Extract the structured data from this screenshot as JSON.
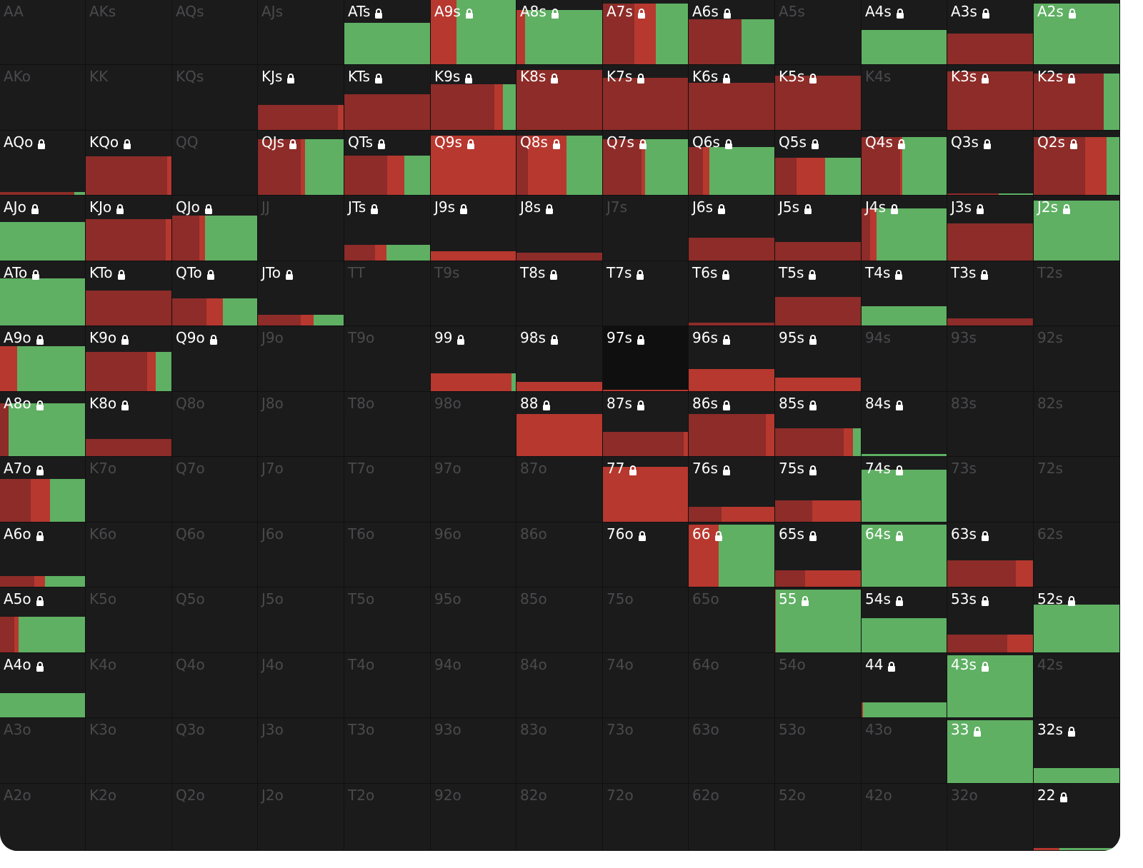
{
  "colors": {
    "background": "#1b1b1c",
    "call": "#8d2c28",
    "raise": "#b7382f",
    "fold": "#5fb063",
    "label_on": "#ffffff",
    "label_off": "#4a4a4c"
  },
  "icons": {
    "locked": "lock-icon"
  },
  "rows": [
    [
      {
        "hand": "AA",
        "on": false
      },
      {
        "hand": "AKs",
        "on": false
      },
      {
        "hand": "AQs",
        "on": false
      },
      {
        "hand": "AJs",
        "on": false
      },
      {
        "hand": "ATs",
        "on": true,
        "h": 0.65,
        "s": [
          0,
          0,
          1
        ]
      },
      {
        "hand": "A9s",
        "on": true,
        "h": 1.0,
        "s": [
          0,
          0.3,
          0.7
        ]
      },
      {
        "hand": "A8s",
        "on": true,
        "h": 0.85,
        "s": [
          0,
          0.1,
          0.9
        ]
      },
      {
        "hand": "A7s",
        "on": true,
        "h": 0.95,
        "s": [
          0.37,
          0.25,
          0.38
        ]
      },
      {
        "hand": "A6s",
        "on": true,
        "h": 0.7,
        "s": [
          0.62,
          0.0,
          0.38
        ]
      },
      {
        "hand": "A5s",
        "on": false
      },
      {
        "hand": "A4s",
        "on": true,
        "h": 0.53,
        "s": [
          0,
          0,
          1
        ]
      },
      {
        "hand": "A3s",
        "on": true,
        "h": 0.48,
        "s": [
          1,
          0,
          0
        ]
      },
      {
        "hand": "A2s",
        "on": true,
        "h": 0.94,
        "s": [
          0,
          0,
          1
        ]
      }
    ],
    [
      {
        "hand": "AKo",
        "on": false
      },
      {
        "hand": "KK",
        "on": false
      },
      {
        "hand": "KQs",
        "on": false
      },
      {
        "hand": "KJs",
        "on": true,
        "h": 0.39,
        "s": [
          0.93,
          0.07,
          0
        ]
      },
      {
        "hand": "KTs",
        "on": true,
        "h": 0.55,
        "s": [
          1,
          0,
          0
        ]
      },
      {
        "hand": "K9s",
        "on": true,
        "h": 0.7,
        "s": [
          0.75,
          0.1,
          0.15
        ]
      },
      {
        "hand": "K8s",
        "on": true,
        "h": 0.92,
        "s": [
          1,
          0,
          0
        ]
      },
      {
        "hand": "K7s",
        "on": true,
        "h": 0.8,
        "s": [
          1,
          0,
          0
        ]
      },
      {
        "hand": "K6s",
        "on": true,
        "h": 0.73,
        "s": [
          1,
          0,
          0
        ]
      },
      {
        "hand": "K5s",
        "on": true,
        "h": 0.84,
        "s": [
          1,
          0,
          0
        ]
      },
      {
        "hand": "K4s",
        "on": false
      },
      {
        "hand": "K3s",
        "on": true,
        "h": 0.9,
        "s": [
          1,
          0,
          0
        ]
      },
      {
        "hand": "K2s",
        "on": true,
        "h": 0.87,
        "s": [
          0.82,
          0,
          0.18
        ]
      }
    ],
    [
      {
        "hand": "AQo",
        "on": true,
        "h": 0.05,
        "s": [
          0.87,
          0,
          0.13
        ]
      },
      {
        "hand": "KQo",
        "on": true,
        "h": 0.6,
        "s": [
          0.95,
          0.05,
          0
        ]
      },
      {
        "hand": "QQ",
        "on": false
      },
      {
        "hand": "QJs",
        "on": true,
        "h": 0.87,
        "s": [
          0.5,
          0.05,
          0.45
        ]
      },
      {
        "hand": "QTs",
        "on": true,
        "h": 0.61,
        "s": [
          0.5,
          0.2,
          0.3
        ]
      },
      {
        "hand": "Q9s",
        "on": true,
        "h": 0.92,
        "s": [
          0,
          1,
          0
        ]
      },
      {
        "hand": "Q8s",
        "on": true,
        "h": 0.92,
        "s": [
          0.13,
          0.45,
          0.42
        ]
      },
      {
        "hand": "Q7s",
        "on": true,
        "h": 0.87,
        "s": [
          0.45,
          0.05,
          0.5
        ]
      },
      {
        "hand": "Q6s",
        "on": true,
        "h": 0.75,
        "s": [
          0.17,
          0.07,
          0.76
        ]
      },
      {
        "hand": "Q5s",
        "on": true,
        "h": 0.58,
        "s": [
          0.25,
          0.33,
          0.42
        ]
      },
      {
        "hand": "Q4s",
        "on": true,
        "h": 0.9,
        "s": [
          0.45,
          0.03,
          0.52
        ]
      },
      {
        "hand": "Q3s",
        "on": true,
        "h": 0.02,
        "s": [
          0.6,
          0,
          0.4
        ]
      },
      {
        "hand": "Q2s",
        "on": true,
        "h": 0.9,
        "s": [
          0.6,
          0.25,
          0.15
        ]
      }
    ],
    [
      {
        "hand": "AJo",
        "on": true,
        "h": 0.59,
        "s": [
          0,
          0,
          1
        ]
      },
      {
        "hand": "KJo",
        "on": true,
        "h": 0.64,
        "s": [
          0.93,
          0.07,
          0
        ]
      },
      {
        "hand": "QJo",
        "on": true,
        "h": 0.69,
        "s": [
          0.32,
          0.07,
          0.61
        ]
      },
      {
        "hand": "JJ",
        "on": false
      },
      {
        "hand": "JTs",
        "on": true,
        "h": 0.24,
        "s": [
          0.36,
          0.13,
          0.51
        ]
      },
      {
        "hand": "J9s",
        "on": true,
        "h": 0.14,
        "s": [
          0,
          1,
          0
        ]
      },
      {
        "hand": "J8s",
        "on": true,
        "h": 0.12,
        "s": [
          1,
          0,
          0
        ]
      },
      {
        "hand": "J7s",
        "on": false
      },
      {
        "hand": "J6s",
        "on": true,
        "h": 0.35,
        "s": [
          1,
          0,
          0
        ]
      },
      {
        "hand": "J5s",
        "on": true,
        "h": 0.29,
        "s": [
          1,
          0,
          0
        ]
      },
      {
        "hand": "J4s",
        "on": true,
        "h": 0.8,
        "s": [
          0.1,
          0.08,
          0.82
        ]
      },
      {
        "hand": "J3s",
        "on": true,
        "h": 0.57,
        "s": [
          1,
          0,
          0
        ]
      },
      {
        "hand": "J2s",
        "on": true,
        "h": 0.92,
        "s": [
          0,
          0,
          1
        ]
      }
    ],
    [
      {
        "hand": "ATo",
        "on": true,
        "h": 0.73,
        "s": [
          0,
          0,
          1
        ]
      },
      {
        "hand": "KTo",
        "on": true,
        "h": 0.55,
        "s": [
          1,
          0,
          0
        ]
      },
      {
        "hand": "QTo",
        "on": true,
        "h": 0.42,
        "s": [
          0.4,
          0.2,
          0.4
        ]
      },
      {
        "hand": "JTo",
        "on": true,
        "h": 0.17,
        "s": [
          0.5,
          0.15,
          0.35
        ]
      },
      {
        "hand": "TT",
        "on": false
      },
      {
        "hand": "T9s",
        "on": false
      },
      {
        "hand": "T8s",
        "on": false,
        "lockOn": true
      },
      {
        "hand": "T7s",
        "on": false,
        "lockOn": true
      },
      {
        "hand": "T6s",
        "on": true,
        "h": 0.05,
        "s": [
          1,
          0,
          0
        ]
      },
      {
        "hand": "T5s",
        "on": true,
        "h": 0.45,
        "s": [
          1,
          0,
          0
        ]
      },
      {
        "hand": "T4s",
        "on": true,
        "h": 0.3,
        "s": [
          0,
          0,
          1
        ]
      },
      {
        "hand": "T3s",
        "on": true,
        "h": 0.11,
        "s": [
          1,
          0,
          0
        ]
      },
      {
        "hand": "T2s",
        "on": false
      }
    ],
    [
      {
        "hand": "A9o",
        "on": true,
        "h": 0.69,
        "s": [
          0,
          0.2,
          0.8
        ]
      },
      {
        "hand": "K9o",
        "on": true,
        "h": 0.6,
        "s": [
          0.72,
          0.1,
          0.18
        ]
      },
      {
        "hand": "Q9o",
        "on": false,
        "lockOn": true
      },
      {
        "hand": "J9o",
        "on": false
      },
      {
        "hand": "T9o",
        "on": false
      },
      {
        "hand": "99",
        "on": true,
        "h": 0.28,
        "s": [
          0,
          0.95,
          0.05
        ]
      },
      {
        "hand": "98s",
        "on": true,
        "h": 0.14,
        "s": [
          0,
          1,
          0
        ]
      },
      {
        "hand": "97s",
        "on": true,
        "dark": true,
        "h": 0.02,
        "s": [
          0,
          1,
          0
        ]
      },
      {
        "hand": "96s",
        "on": true,
        "h": 0.34,
        "s": [
          0,
          1,
          0
        ]
      },
      {
        "hand": "95s",
        "on": true,
        "h": 0.21,
        "s": [
          0,
          1,
          0
        ]
      },
      {
        "hand": "94s",
        "on": false
      },
      {
        "hand": "93s",
        "on": false
      },
      {
        "hand": "92s",
        "on": false
      }
    ],
    [
      {
        "hand": "A8o",
        "on": true,
        "h": 0.82,
        "s": [
          0.1,
          0,
          0.9
        ]
      },
      {
        "hand": "K8o",
        "on": true,
        "h": 0.27,
        "s": [
          1,
          0,
          0
        ]
      },
      {
        "hand": "Q8o",
        "on": false
      },
      {
        "hand": "J8o",
        "on": false
      },
      {
        "hand": "T8o",
        "on": false
      },
      {
        "hand": "98o",
        "on": false
      },
      {
        "hand": "88",
        "on": true,
        "h": 0.66,
        "s": [
          0,
          1,
          0
        ]
      },
      {
        "hand": "87s",
        "on": true,
        "h": 0.38,
        "s": [
          0.95,
          0.05,
          0
        ]
      },
      {
        "hand": "86s",
        "on": true,
        "h": 0.66,
        "s": [
          0.9,
          0.1,
          0
        ]
      },
      {
        "hand": "85s",
        "on": true,
        "h": 0.43,
        "s": [
          0.8,
          0.11,
          0.09
        ]
      },
      {
        "hand": "84s",
        "on": true,
        "h": 0.03,
        "s": [
          0,
          0,
          1
        ]
      },
      {
        "hand": "83s",
        "on": false
      },
      {
        "hand": "82s",
        "on": false
      }
    ],
    [
      {
        "hand": "A7o",
        "on": true,
        "h": 0.66,
        "s": [
          0.36,
          0.23,
          0.41
        ]
      },
      {
        "hand": "K7o",
        "on": false
      },
      {
        "hand": "Q7o",
        "on": false
      },
      {
        "hand": "J7o",
        "on": false
      },
      {
        "hand": "T7o",
        "on": false
      },
      {
        "hand": "97o",
        "on": false
      },
      {
        "hand": "87o",
        "on": false
      },
      {
        "hand": "77",
        "on": true,
        "h": 0.85,
        "s": [
          0,
          1,
          0
        ]
      },
      {
        "hand": "76s",
        "on": true,
        "h": 0.23,
        "s": [
          0.38,
          0.62,
          0
        ]
      },
      {
        "hand": "75s",
        "on": true,
        "h": 0.33,
        "s": [
          0.43,
          0.57,
          0
        ]
      },
      {
        "hand": "74s",
        "on": true,
        "h": 0.8,
        "s": [
          0,
          0,
          1
        ]
      },
      {
        "hand": "73s",
        "on": false
      },
      {
        "hand": "72s",
        "on": false
      }
    ],
    [
      {
        "hand": "A6o",
        "on": true,
        "h": 0.17,
        "s": [
          0.4,
          0.13,
          0.47
        ]
      },
      {
        "hand": "K6o",
        "on": false
      },
      {
        "hand": "Q6o",
        "on": false
      },
      {
        "hand": "J6o",
        "on": false
      },
      {
        "hand": "T6o",
        "on": false
      },
      {
        "hand": "96o",
        "on": false
      },
      {
        "hand": "86o",
        "on": false
      },
      {
        "hand": "76o",
        "on": false,
        "lockOn": true
      },
      {
        "hand": "66",
        "on": true,
        "h": 0.97,
        "s": [
          0,
          0.35,
          0.65
        ]
      },
      {
        "hand": "65s",
        "on": true,
        "h": 0.26,
        "s": [
          0.35,
          0.65,
          0
        ]
      },
      {
        "hand": "64s",
        "on": true,
        "h": 0.97,
        "s": [
          0,
          0,
          1
        ]
      },
      {
        "hand": "63s",
        "on": true,
        "h": 0.41,
        "s": [
          0.8,
          0.2,
          0
        ]
      },
      {
        "hand": "62s",
        "on": false
      }
    ],
    [
      {
        "hand": "A5o",
        "on": true,
        "h": 0.55,
        "s": [
          0.17,
          0.05,
          0.78
        ]
      },
      {
        "hand": "K5o",
        "on": false
      },
      {
        "hand": "Q5o",
        "on": false
      },
      {
        "hand": "J5o",
        "on": false
      },
      {
        "hand": "T5o",
        "on": false
      },
      {
        "hand": "95o",
        "on": false
      },
      {
        "hand": "85o",
        "on": false
      },
      {
        "hand": "75o",
        "on": false
      },
      {
        "hand": "65o",
        "on": false
      },
      {
        "hand": "55",
        "on": true,
        "h": 0.97,
        "s": [
          0,
          0.01,
          0.99
        ]
      },
      {
        "hand": "54s",
        "on": true,
        "h": 0.53,
        "s": [
          0,
          0,
          1
        ]
      },
      {
        "hand": "53s",
        "on": true,
        "h": 0.27,
        "s": [
          0.7,
          0.3,
          0
        ]
      },
      {
        "hand": "52s",
        "on": true,
        "h": 0.74,
        "s": [
          0,
          0,
          1
        ]
      }
    ],
    [
      {
        "hand": "A4o",
        "on": true,
        "h": 0.38,
        "s": [
          0,
          0,
          1
        ]
      },
      {
        "hand": "K4o",
        "on": false
      },
      {
        "hand": "Q4o",
        "on": false
      },
      {
        "hand": "J4o",
        "on": false
      },
      {
        "hand": "T4o",
        "on": false
      },
      {
        "hand": "94o",
        "on": false
      },
      {
        "hand": "84o",
        "on": false
      },
      {
        "hand": "74o",
        "on": false
      },
      {
        "hand": "64o",
        "on": false
      },
      {
        "hand": "54o",
        "on": false
      },
      {
        "hand": "44",
        "on": true,
        "h": 0.23,
        "s": [
          0.01,
          0.01,
          0.98
        ]
      },
      {
        "hand": "43s",
        "on": true,
        "h": 0.97,
        "s": [
          0,
          0,
          1
        ]
      },
      {
        "hand": "42s",
        "on": false
      }
    ],
    [
      {
        "hand": "A3o",
        "on": false
      },
      {
        "hand": "K3o",
        "on": false
      },
      {
        "hand": "Q3o",
        "on": false
      },
      {
        "hand": "J3o",
        "on": false
      },
      {
        "hand": "T3o",
        "on": false
      },
      {
        "hand": "93o",
        "on": false
      },
      {
        "hand": "83o",
        "on": false
      },
      {
        "hand": "73o",
        "on": false
      },
      {
        "hand": "63o",
        "on": false
      },
      {
        "hand": "53o",
        "on": false
      },
      {
        "hand": "43o",
        "on": false
      },
      {
        "hand": "33",
        "on": true,
        "h": 0.97,
        "s": [
          0,
          0,
          1
        ]
      },
      {
        "hand": "32s",
        "on": true,
        "h": 0.23,
        "s": [
          0,
          0,
          1
        ]
      }
    ],
    [
      {
        "hand": "A2o",
        "on": false
      },
      {
        "hand": "K2o",
        "on": false
      },
      {
        "hand": "Q2o",
        "on": false
      },
      {
        "hand": "J2o",
        "on": false
      },
      {
        "hand": "T2o",
        "on": false
      },
      {
        "hand": "92o",
        "on": false
      },
      {
        "hand": "82o",
        "on": false
      },
      {
        "hand": "72o",
        "on": false
      },
      {
        "hand": "62o",
        "on": false
      },
      {
        "hand": "52o",
        "on": false
      },
      {
        "hand": "42o",
        "on": false
      },
      {
        "hand": "32o",
        "on": false
      },
      {
        "hand": "22",
        "on": true,
        "h": 0.03,
        "s": [
          0,
          0.3,
          0.7
        ]
      }
    ]
  ]
}
